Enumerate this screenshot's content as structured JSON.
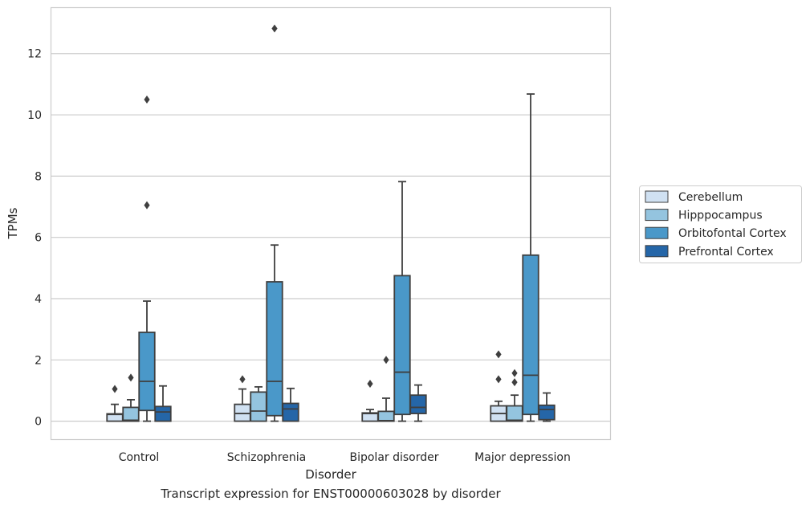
{
  "caption": "Transcript expression for ENST00000603028 by disorder",
  "chart_data": {
    "type": "box",
    "xlabel": "Disorder",
    "ylabel": "TPMs",
    "ylim": [
      -0.6,
      13.5
    ],
    "yticks": [
      0,
      2,
      4,
      6,
      8,
      10,
      12
    ],
    "grid": "horizontal",
    "legend_position": "right",
    "categories": [
      "Control",
      "Schizophrenia",
      "Bipolar disorder",
      "Major depression"
    ],
    "series": [
      {
        "name": "Cerebellum",
        "color": "#d0e1f2",
        "boxes": [
          {
            "whislo": 0,
            "q1": 0,
            "med": 0.22,
            "q3": 0.24,
            "whishi": 0.55,
            "fliers": [
              1.05
            ]
          },
          {
            "whislo": 0,
            "q1": 0,
            "med": 0.25,
            "q3": 0.55,
            "whishi": 1.05,
            "fliers": [
              1.37
            ]
          },
          {
            "whislo": 0,
            "q1": 0,
            "med": 0.25,
            "q3": 0.27,
            "whishi": 0.38,
            "fliers": [
              1.22
            ]
          },
          {
            "whislo": 0,
            "q1": 0,
            "med": 0.25,
            "q3": 0.5,
            "whishi": 0.65,
            "fliers": [
              1.37,
              2.18
            ]
          }
        ]
      },
      {
        "name": "Hipppocampus",
        "color": "#94c4df",
        "boxes": [
          {
            "whislo": 0,
            "q1": 0,
            "med": 0.03,
            "q3": 0.45,
            "whishi": 0.7,
            "fliers": [
              1.42
            ]
          },
          {
            "whislo": 0,
            "q1": 0,
            "med": 0.33,
            "q3": 0.95,
            "whishi": 1.12,
            "fliers": []
          },
          {
            "whislo": 0,
            "q1": 0,
            "med": 0.02,
            "q3": 0.32,
            "whishi": 0.75,
            "fliers": [
              2.0
            ]
          },
          {
            "whislo": 0,
            "q1": 0,
            "med": 0.03,
            "q3": 0.5,
            "whishi": 0.85,
            "fliers": [
              1.27,
              1.57
            ]
          }
        ]
      },
      {
        "name": "Orbitofontal Cortex",
        "color": "#4a98c9",
        "boxes": [
          {
            "whislo": 0,
            "q1": 0.35,
            "med": 1.3,
            "q3": 2.9,
            "whishi": 3.92,
            "fliers": [
              7.05,
              10.5
            ]
          },
          {
            "whislo": 0,
            "q1": 0.18,
            "med": 1.3,
            "q3": 4.55,
            "whishi": 5.75,
            "fliers": [
              12.82
            ]
          },
          {
            "whislo": 0,
            "q1": 0.22,
            "med": 1.6,
            "q3": 4.75,
            "whishi": 7.82,
            "fliers": []
          },
          {
            "whislo": 0,
            "q1": 0.22,
            "med": 1.5,
            "q3": 5.42,
            "whishi": 10.68,
            "fliers": []
          }
        ]
      },
      {
        "name": "Prefrontal Cortex",
        "color": "#2566a8",
        "boxes": [
          {
            "whislo": 0,
            "q1": 0,
            "med": 0.3,
            "q3": 0.48,
            "whishi": 1.15,
            "fliers": []
          },
          {
            "whislo": 0,
            "q1": 0,
            "med": 0.4,
            "q3": 0.58,
            "whishi": 1.07,
            "fliers": []
          },
          {
            "whislo": 0,
            "q1": 0.25,
            "med": 0.45,
            "q3": 0.85,
            "whishi": 1.18,
            "fliers": []
          },
          {
            "whislo": 0,
            "q1": 0.05,
            "med": 0.38,
            "q3": 0.52,
            "whishi": 0.92,
            "fliers": []
          }
        ]
      }
    ]
  }
}
